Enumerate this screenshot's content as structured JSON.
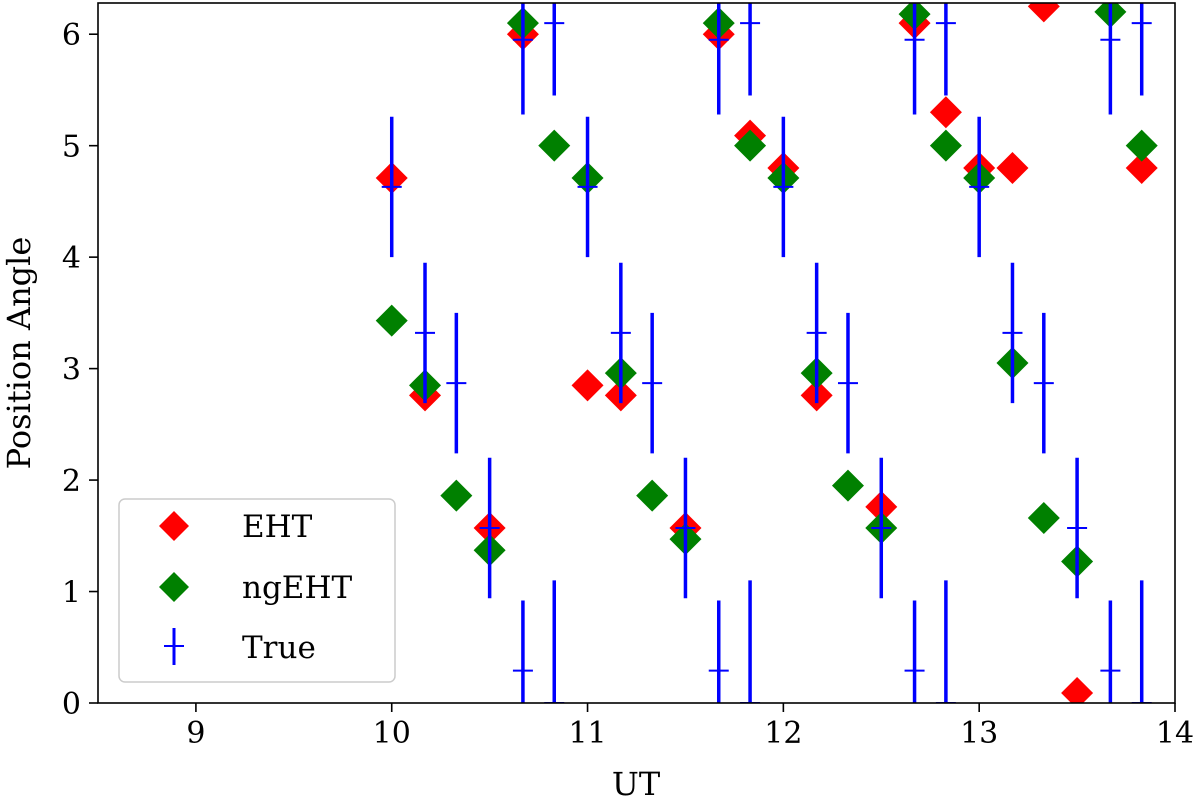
{
  "chart_data": {
    "type": "scatter",
    "title": "",
    "xlabel": "UT",
    "ylabel": "Position Angle",
    "xlim": [
      8.5,
      14
    ],
    "ylim": [
      0,
      6.28
    ],
    "x_ticks": [
      9,
      10,
      11,
      12,
      13,
      14
    ],
    "y_ticks": [
      0,
      1,
      2,
      3,
      4,
      5,
      6
    ],
    "grid": false,
    "legend_position": "bottom-left",
    "legend_labels": [
      "EHT",
      "ngEHT",
      "True"
    ],
    "series": [
      {
        "name": "EHT",
        "marker": "diamond",
        "color": "#ff0000",
        "points": [
          [
            10.0,
            4.71
          ],
          [
            10.17,
            2.76
          ],
          [
            10.5,
            1.57
          ],
          [
            10.67,
            6.0
          ],
          [
            11.0,
            2.85
          ],
          [
            11.17,
            2.76
          ],
          [
            11.5,
            1.57
          ],
          [
            11.67,
            6.0
          ],
          [
            11.83,
            5.09
          ],
          [
            12.0,
            4.8
          ],
          [
            12.17,
            2.76
          ],
          [
            12.5,
            1.76
          ],
          [
            12.67,
            6.1
          ],
          [
            12.83,
            5.3
          ],
          [
            13.0,
            4.8
          ],
          [
            13.17,
            4.8
          ],
          [
            13.33,
            6.25
          ],
          [
            13.5,
            0.09
          ],
          [
            13.83,
            4.8
          ]
        ]
      },
      {
        "name": "ngEHT",
        "marker": "diamond",
        "color": "#008000",
        "points": [
          [
            10.0,
            3.43
          ],
          [
            10.17,
            2.85
          ],
          [
            10.33,
            1.86
          ],
          [
            10.5,
            1.37
          ],
          [
            10.67,
            6.1
          ],
          [
            10.83,
            5.0
          ],
          [
            11.0,
            4.71
          ],
          [
            11.17,
            2.96
          ],
          [
            11.33,
            1.86
          ],
          [
            11.5,
            1.47
          ],
          [
            11.67,
            6.1
          ],
          [
            11.83,
            5.0
          ],
          [
            12.0,
            4.71
          ],
          [
            12.17,
            2.96
          ],
          [
            12.33,
            1.95
          ],
          [
            12.5,
            1.57
          ],
          [
            12.67,
            6.18
          ],
          [
            12.83,
            5.0
          ],
          [
            13.0,
            4.71
          ],
          [
            13.17,
            3.05
          ],
          [
            13.33,
            1.66
          ],
          [
            13.5,
            1.27
          ],
          [
            13.67,
            6.2
          ],
          [
            13.83,
            5.0
          ]
        ]
      },
      {
        "name": "True",
        "marker": "errorbar",
        "color": "#0000ff",
        "points": [
          [
            10.0,
            4.63,
            0.63
          ],
          [
            10.17,
            3.32,
            0.63
          ],
          [
            10.33,
            2.87,
            0.63
          ],
          [
            10.5,
            1.57,
            0.63
          ],
          [
            10.67,
            0.29,
            0.63
          ],
          [
            10.67,
            5.95,
            0.67
          ],
          [
            10.83,
            0.0,
            1.1
          ],
          [
            10.83,
            6.1,
            0.65
          ],
          [
            11.0,
            4.63,
            0.63
          ],
          [
            11.17,
            3.32,
            0.63
          ],
          [
            11.33,
            2.87,
            0.63
          ],
          [
            11.5,
            1.57,
            0.63
          ],
          [
            11.67,
            0.29,
            0.63
          ],
          [
            11.67,
            5.95,
            0.67
          ],
          [
            11.83,
            0.0,
            1.1
          ],
          [
            11.83,
            6.1,
            0.65
          ],
          [
            12.0,
            4.63,
            0.63
          ],
          [
            12.17,
            3.32,
            0.63
          ],
          [
            12.33,
            2.87,
            0.63
          ],
          [
            12.5,
            1.57,
            0.63
          ],
          [
            12.67,
            0.29,
            0.63
          ],
          [
            12.67,
            5.95,
            0.67
          ],
          [
            12.83,
            0.0,
            1.1
          ],
          [
            12.83,
            6.1,
            0.65
          ],
          [
            13.0,
            4.63,
            0.63
          ],
          [
            13.17,
            3.32,
            0.63
          ],
          [
            13.33,
            2.87,
            0.63
          ],
          [
            13.5,
            1.57,
            0.63
          ],
          [
            13.67,
            0.29,
            0.63
          ],
          [
            13.67,
            5.95,
            0.67
          ],
          [
            13.83,
            0.0,
            1.1
          ],
          [
            13.83,
            6.1,
            0.65
          ]
        ]
      }
    ]
  }
}
